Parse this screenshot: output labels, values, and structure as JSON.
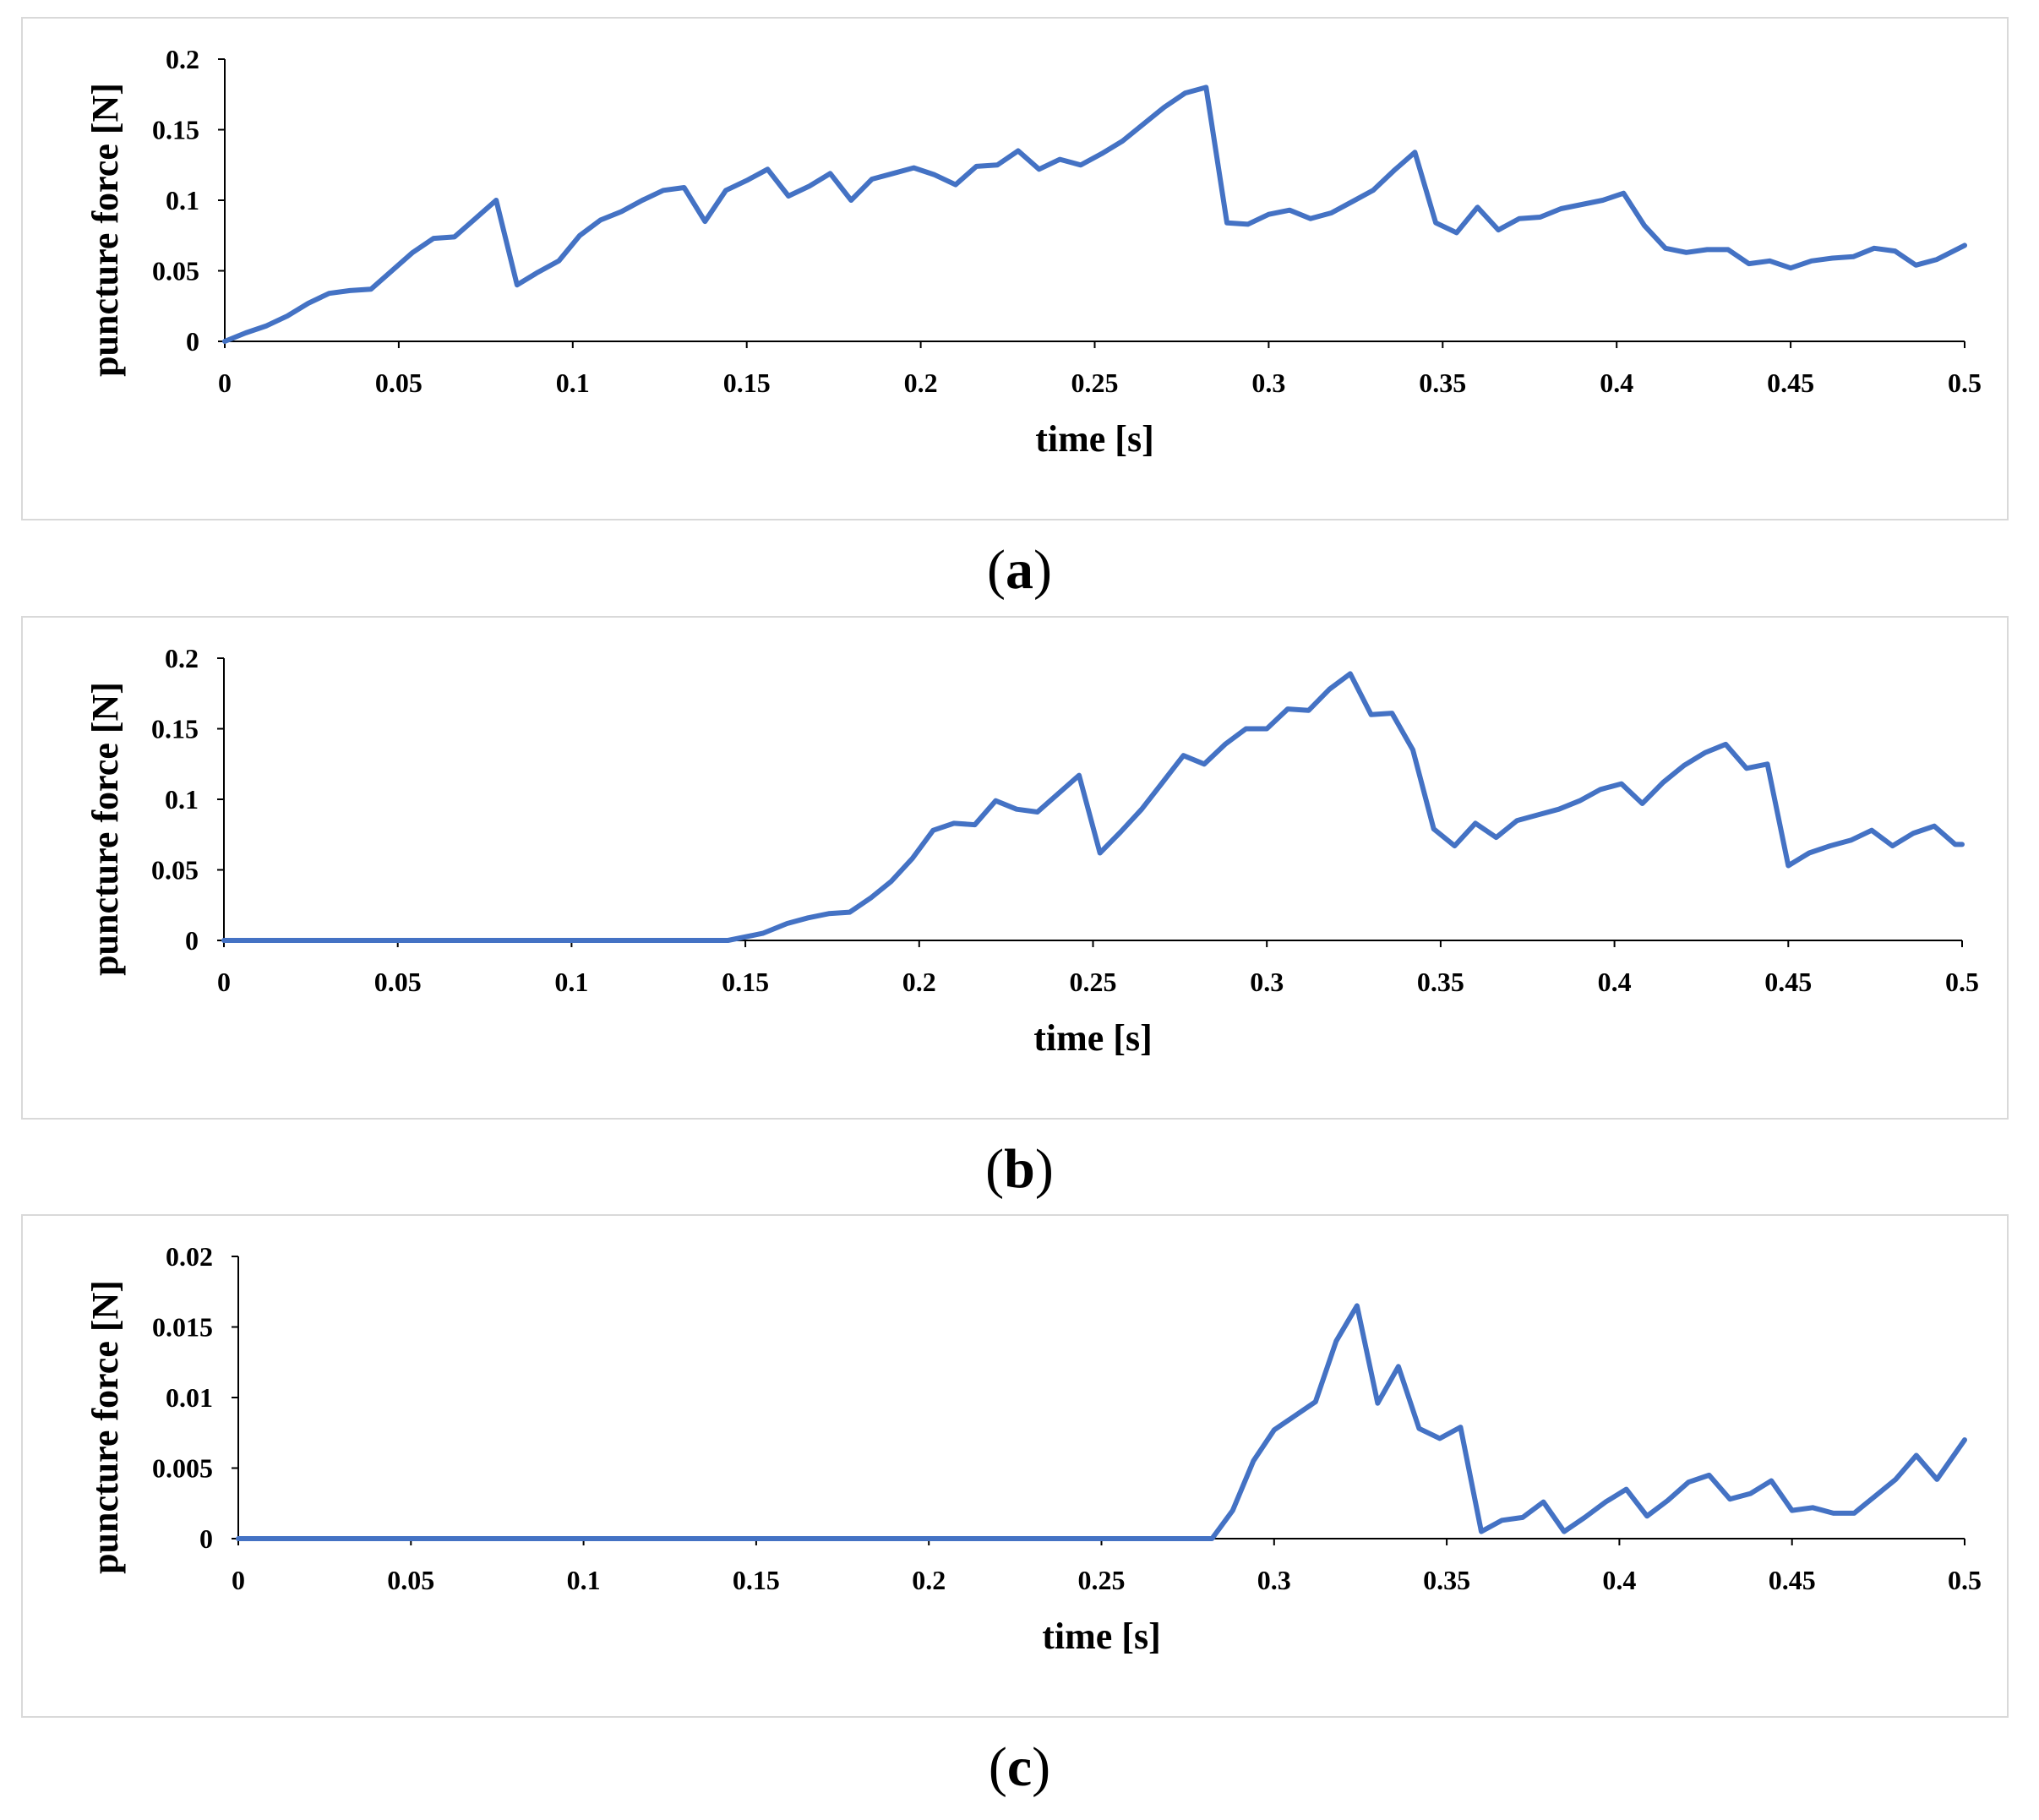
{
  "captions": [
    "a",
    "b",
    "c"
  ],
  "chart_data": [
    {
      "type": "line",
      "title": "",
      "xlabel": "time [s]",
      "ylabel": "puncture force [N]",
      "xlim": [
        0,
        0.5
      ],
      "ylim": [
        0,
        0.2
      ],
      "x_ticks": [
        "0",
        "0.05",
        "0.1",
        "0.15",
        "0.2",
        "0.25",
        "0.3",
        "0.35",
        "0.4",
        "0.45",
        "0.5"
      ],
      "y_ticks": [
        "0",
        "0.05",
        "0.1",
        "0.15",
        "0.2"
      ],
      "series_color": "#4472C4",
      "series": [
        {
          "name": "puncture force",
          "x": [
            0,
            0.006,
            0.012,
            0.018,
            0.024,
            0.03,
            0.036,
            0.042,
            0.048,
            0.054,
            0.06,
            0.066,
            0.072,
            0.078,
            0.084,
            0.09,
            0.096,
            0.102,
            0.108,
            0.114,
            0.12,
            0.126,
            0.132,
            0.138,
            0.144,
            0.15,
            0.156,
            0.162,
            0.168,
            0.174,
            0.18,
            0.186,
            0.192,
            0.198,
            0.204,
            0.21,
            0.216,
            0.222,
            0.228,
            0.234,
            0.24,
            0.246,
            0.252,
            0.258,
            0.264,
            0.27,
            0.276,
            0.282,
            0.288,
            0.294,
            0.3,
            0.306,
            0.312,
            0.318,
            0.324,
            0.33,
            0.336,
            0.342,
            0.348,
            0.354,
            0.36,
            0.366,
            0.372,
            0.378,
            0.384,
            0.39,
            0.396,
            0.402,
            0.408,
            0.414,
            0.42,
            0.426,
            0.432,
            0.438,
            0.444,
            0.45,
            0.456,
            0.462,
            0.468,
            0.474,
            0.48,
            0.486,
            0.492,
            0.5
          ],
          "values": [
            0,
            0.006,
            0.011,
            0.018,
            0.027,
            0.034,
            0.036,
            0.037,
            0.05,
            0.063,
            0.073,
            0.074,
            0.087,
            0.1,
            0.04,
            0.049,
            0.057,
            0.075,
            0.086,
            0.092,
            0.1,
            0.107,
            0.109,
            0.085,
            0.107,
            0.114,
            0.122,
            0.103,
            0.11,
            0.119,
            0.1,
            0.115,
            0.119,
            0.123,
            0.118,
            0.111,
            0.124,
            0.125,
            0.135,
            0.122,
            0.129,
            0.125,
            0.133,
            0.142,
            0.154,
            0.166,
            0.176,
            0.18,
            0.084,
            0.083,
            0.09,
            0.093,
            0.087,
            0.091,
            0.099,
            0.107,
            0.121,
            0.134,
            0.084,
            0.077,
            0.095,
            0.079,
            0.087,
            0.088,
            0.094,
            0.097,
            0.1,
            0.105,
            0.082,
            0.066,
            0.063,
            0.065,
            0.065,
            0.055,
            0.057,
            0.052,
            0.057,
            0.059,
            0.06,
            0.066,
            0.064,
            0.054,
            0.058,
            0.068
          ]
        }
      ]
    },
    {
      "type": "line",
      "title": "",
      "xlabel": "time [s]",
      "ylabel": "puncture force [N]",
      "xlim": [
        0,
        0.5
      ],
      "ylim": [
        0,
        0.2
      ],
      "x_ticks": [
        "0",
        "0.05",
        "0.1",
        "0.15",
        "0.2",
        "0.25",
        "0.3",
        "0.35",
        "0.4",
        "0.45",
        "0.5"
      ],
      "y_ticks": [
        "0",
        "0.05",
        "0.1",
        "0.15",
        "0.2"
      ],
      "series_color": "#4472C4",
      "series": [
        {
          "name": "puncture force",
          "x": [
            0,
            0.145,
            0.155,
            0.162,
            0.168,
            0.174,
            0.18,
            0.186,
            0.192,
            0.198,
            0.204,
            0.21,
            0.216,
            0.222,
            0.228,
            0.234,
            0.24,
            0.246,
            0.252,
            0.258,
            0.264,
            0.27,
            0.276,
            0.282,
            0.288,
            0.294,
            0.3,
            0.306,
            0.312,
            0.318,
            0.324,
            0.33,
            0.336,
            0.342,
            0.348,
            0.354,
            0.36,
            0.366,
            0.372,
            0.378,
            0.384,
            0.39,
            0.396,
            0.402,
            0.408,
            0.414,
            0.42,
            0.426,
            0.432,
            0.438,
            0.444,
            0.45,
            0.456,
            0.462,
            0.468,
            0.474,
            0.48,
            0.486,
            0.492,
            0.498,
            0.5
          ],
          "values": [
            0,
            0,
            0.005,
            0.012,
            0.016,
            0.019,
            0.02,
            0.03,
            0.042,
            0.058,
            0.078,
            0.083,
            0.082,
            0.099,
            0.093,
            0.091,
            0.104,
            0.117,
            0.062,
            0.077,
            0.093,
            0.112,
            0.131,
            0.125,
            0.139,
            0.15,
            0.15,
            0.164,
            0.163,
            0.178,
            0.189,
            0.16,
            0.161,
            0.135,
            0.079,
            0.067,
            0.083,
            0.073,
            0.085,
            0.089,
            0.093,
            0.099,
            0.107,
            0.111,
            0.097,
            0.112,
            0.124,
            0.133,
            0.139,
            0.122,
            0.125,
            0.053,
            0.062,
            0.067,
            0.071,
            0.078,
            0.067,
            0.076,
            0.081,
            0.068,
            0.068
          ]
        }
      ]
    },
    {
      "type": "line",
      "title": "",
      "xlabel": "time [s]",
      "ylabel": "puncture force [N]",
      "xlim": [
        0,
        0.5
      ],
      "ylim": [
        0,
        0.02
      ],
      "x_ticks": [
        "0",
        "0.05",
        "0.1",
        "0.15",
        "0.2",
        "0.25",
        "0.3",
        "0.35",
        "0.4",
        "0.45",
        "0.5"
      ],
      "y_ticks": [
        "0",
        "0.005",
        "0.01",
        "0.015",
        "0.02"
      ],
      "series_color": "#4472C4",
      "series": [
        {
          "name": "puncture force",
          "x": [
            0,
            0.282,
            0.288,
            0.294,
            0.3,
            0.306,
            0.312,
            0.318,
            0.324,
            0.33,
            0.336,
            0.342,
            0.348,
            0.354,
            0.36,
            0.366,
            0.372,
            0.378,
            0.384,
            0.39,
            0.396,
            0.402,
            0.408,
            0.414,
            0.42,
            0.426,
            0.432,
            0.438,
            0.444,
            0.45,
            0.456,
            0.462,
            0.468,
            0.474,
            0.48,
            0.486,
            0.492,
            0.5
          ],
          "values": [
            0,
            0,
            0.002,
            0.0055,
            0.0077,
            0.0087,
            0.0097,
            0.014,
            0.0165,
            0.0096,
            0.0122,
            0.0078,
            0.0071,
            0.0079,
            0.0005,
            0.0013,
            0.0015,
            0.0026,
            0.0005,
            0.0015,
            0.0026,
            0.0035,
            0.0016,
            0.0027,
            0.004,
            0.0045,
            0.0028,
            0.0032,
            0.0041,
            0.002,
            0.0022,
            0.0018,
            0.0018,
            0.003,
            0.0042,
            0.0059,
            0.0042,
            0.007
          ]
        }
      ]
    }
  ]
}
